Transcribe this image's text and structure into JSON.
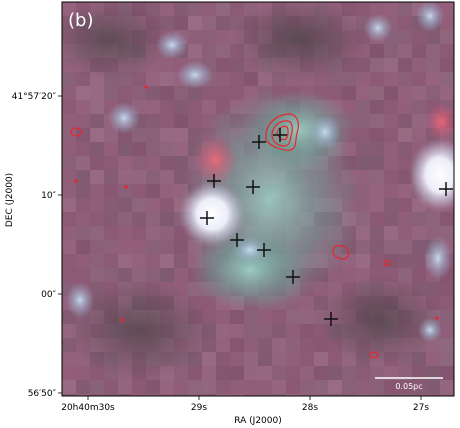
{
  "panel_label": "(b)",
  "axes": {
    "xlabel": "RA (J2000)",
    "ylabel": "DEC (J2000)",
    "xticks": [
      "20h40m30s",
      "29s",
      "28s",
      "27s"
    ],
    "yticks": [
      "41°57′20″",
      "10″",
      "00″",
      "56′50″"
    ]
  },
  "scalebar": {
    "label": "0.05pc"
  },
  "colors": {
    "contour": "#e8262a",
    "marker": "#111111",
    "frame": "#000000"
  },
  "markers": {
    "type": "plus",
    "count": 11
  },
  "contours": {
    "color_name": "red",
    "count": 10
  }
}
